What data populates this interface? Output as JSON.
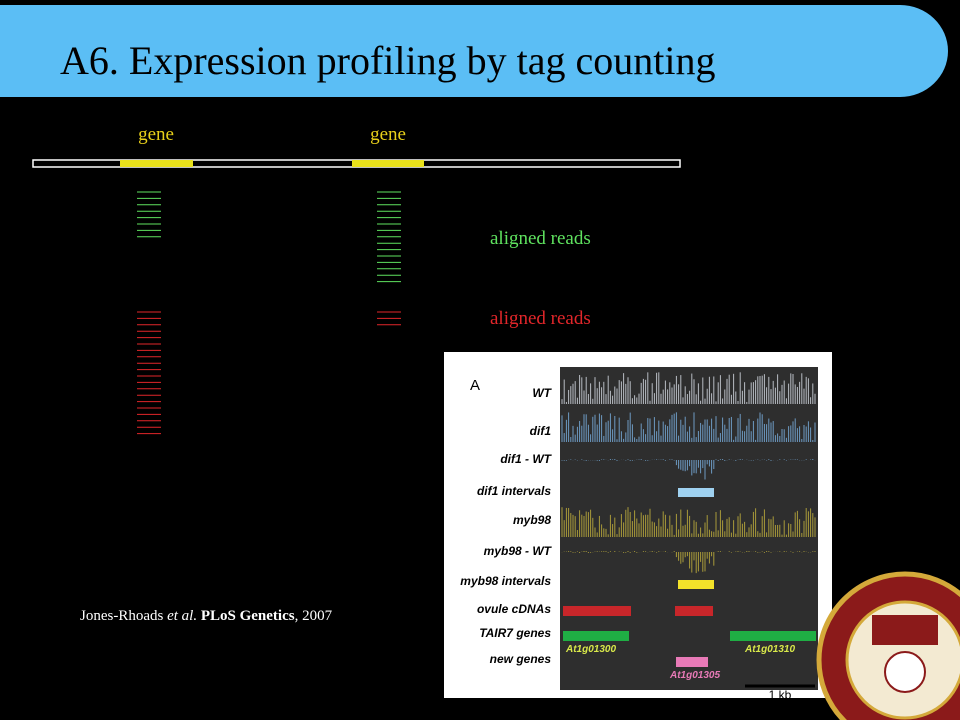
{
  "title": "A6. Expression profiling by tag counting",
  "diagram": {
    "gene_labels": [
      "gene",
      "gene"
    ],
    "read_labels": [
      "aligned reads",
      "aligned reads"
    ]
  },
  "citation": {
    "authors": "Jones-Rhoads",
    "etal": "et al.",
    "journal": "PLoS Genetics",
    "year": ", 2007"
  },
  "figure": {
    "panel_label": "A",
    "tracks": [
      "WT",
      "dif1",
      "dif1 - WT",
      "dif1 intervals",
      "myb98",
      "myb98 - WT",
      "myb98 intervals",
      "ovule cDNAs",
      "TAIR7 genes",
      "new genes"
    ],
    "gene_names": [
      "At1g01300",
      "At1g01310",
      "At1g01305"
    ],
    "scale": "1 kb"
  }
}
